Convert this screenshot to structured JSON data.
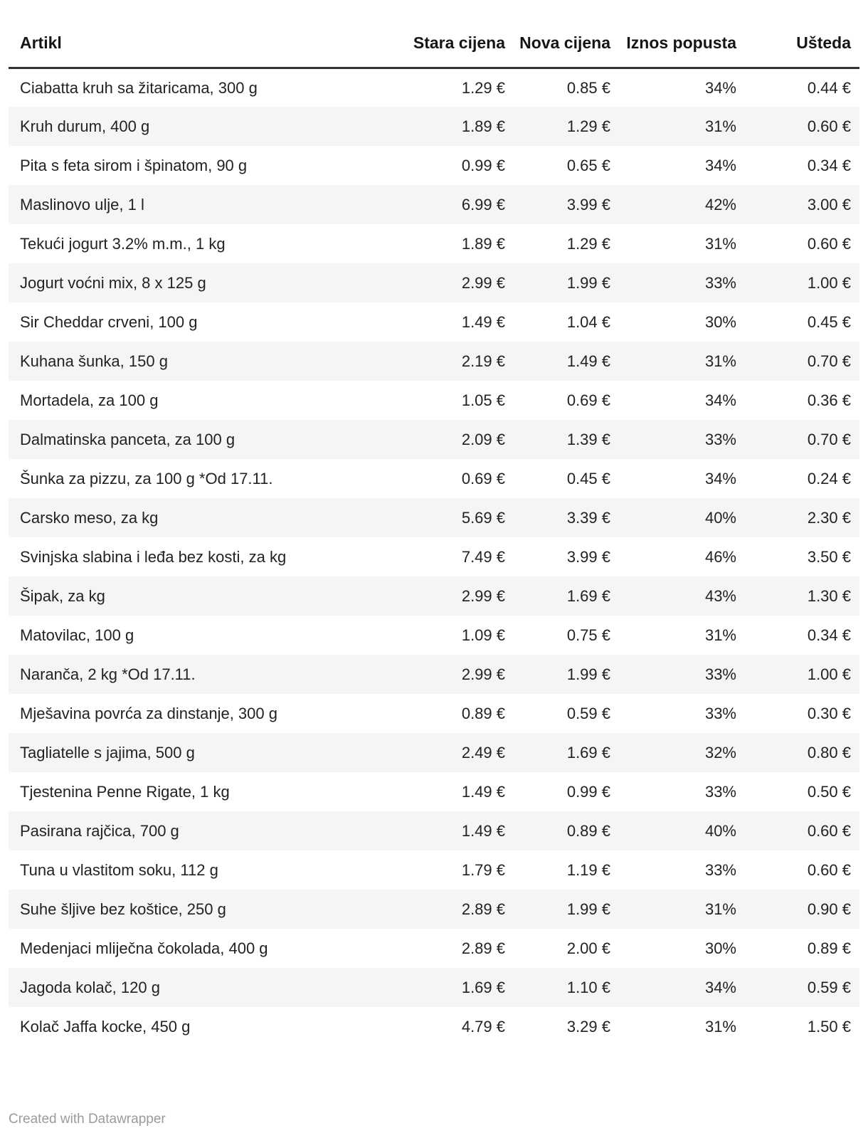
{
  "chart_data": {
    "type": "table",
    "columns": [
      "Artikl",
      "Stara cijena",
      "Nova cijena",
      "Iznos popusta",
      "Ušteda"
    ],
    "rows": [
      {
        "artikl": "Ciabatta kruh sa žitaricama, 300 g",
        "stara": "1.29 €",
        "nova": "0.85 €",
        "popust": "34%",
        "usteda": "0.44 €"
      },
      {
        "artikl": "Kruh durum, 400 g",
        "stara": "1.89 €",
        "nova": "1.29 €",
        "popust": "31%",
        "usteda": "0.60 €"
      },
      {
        "artikl": "Pita s feta sirom i špinatom, 90 g",
        "stara": "0.99 €",
        "nova": "0.65 €",
        "popust": "34%",
        "usteda": "0.34 €"
      },
      {
        "artikl": "Maslinovo ulje, 1 l",
        "stara": "6.99 €",
        "nova": "3.99 €",
        "popust": "42%",
        "usteda": "3.00 €"
      },
      {
        "artikl": "Tekući jogurt 3.2% m.m., 1 kg",
        "stara": "1.89 €",
        "nova": "1.29 €",
        "popust": "31%",
        "usteda": "0.60 €"
      },
      {
        "artikl": "Jogurt voćni mix, 8 x 125 g",
        "stara": "2.99 €",
        "nova": "1.99 €",
        "popust": "33%",
        "usteda": "1.00 €"
      },
      {
        "artikl": "Sir Cheddar crveni, 100 g",
        "stara": "1.49 €",
        "nova": "1.04 €",
        "popust": "30%",
        "usteda": "0.45 €"
      },
      {
        "artikl": "Kuhana šunka, 150 g",
        "stara": "2.19 €",
        "nova": "1.49 €",
        "popust": "31%",
        "usteda": "0.70 €"
      },
      {
        "artikl": "Mortadela, za 100 g",
        "stara": "1.05 €",
        "nova": "0.69 €",
        "popust": "34%",
        "usteda": "0.36 €"
      },
      {
        "artikl": "Dalmatinska panceta, za 100 g",
        "stara": "2.09 €",
        "nova": "1.39 €",
        "popust": "33%",
        "usteda": "0.70 €"
      },
      {
        "artikl": "Šunka za pizzu, za 100 g *Od 17.11.",
        "stara": "0.69 €",
        "nova": "0.45 €",
        "popust": "34%",
        "usteda": "0.24 €"
      },
      {
        "artikl": "Carsko meso, za kg",
        "stara": "5.69 €",
        "nova": "3.39 €",
        "popust": "40%",
        "usteda": "2.30 €"
      },
      {
        "artikl": "Svinjska slabina i leđa bez kosti, za kg",
        "stara": "7.49 €",
        "nova": "3.99 €",
        "popust": "46%",
        "usteda": "3.50 €"
      },
      {
        "artikl": "Šipak, za kg",
        "stara": "2.99 €",
        "nova": "1.69 €",
        "popust": "43%",
        "usteda": "1.30 €"
      },
      {
        "artikl": "Matovilac, 100 g",
        "stara": "1.09 €",
        "nova": "0.75 €",
        "popust": "31%",
        "usteda": "0.34 €"
      },
      {
        "artikl": "Naranča, 2 kg *Od 17.11.",
        "stara": "2.99 €",
        "nova": "1.99 €",
        "popust": "33%",
        "usteda": "1.00 €"
      },
      {
        "artikl": "Mješavina povrća za dinstanje, 300 g",
        "stara": "0.89 €",
        "nova": "0.59 €",
        "popust": "33%",
        "usteda": "0.30 €"
      },
      {
        "artikl": "Tagliatelle s jajima, 500 g",
        "stara": "2.49 €",
        "nova": "1.69 €",
        "popust": "32%",
        "usteda": "0.80 €"
      },
      {
        "artikl": "Tjestenina Penne Rigate, 1 kg",
        "stara": "1.49 €",
        "nova": "0.99 €",
        "popust": "33%",
        "usteda": "0.50 €"
      },
      {
        "artikl": "Pasirana rajčica, 700 g",
        "stara": "1.49 €",
        "nova": "0.89 €",
        "popust": "40%",
        "usteda": "0.60 €"
      },
      {
        "artikl": "Tuna u vlastitom soku, 112 g",
        "stara": "1.79 €",
        "nova": "1.19 €",
        "popust": "33%",
        "usteda": "0.60 €"
      },
      {
        "artikl": "Suhe šljive bez koštice, 250 g",
        "stara": "2.89 €",
        "nova": "1.99 €",
        "popust": "31%",
        "usteda": "0.90 €"
      },
      {
        "artikl": "Medenjaci mliječna čokolada, 400 g",
        "stara": "2.89 €",
        "nova": "2.00 €",
        "popust": "30%",
        "usteda": "0.89 €"
      },
      {
        "artikl": "Jagoda kolač, 120 g",
        "stara": "1.69 €",
        "nova": "1.10 €",
        "popust": "34%",
        "usteda": "0.59 €"
      },
      {
        "artikl": "Kolač Jaffa kocke, 450 g",
        "stara": "4.79 €",
        "nova": "3.29 €",
        "popust": "31%",
        "usteda": "1.50 €"
      }
    ],
    "layout": {
      "zebra_stripes": true,
      "stripe_color": "#f5f5f5",
      "header_rule_color": "#333333",
      "numeric_alignment": "right"
    }
  },
  "footer": {
    "credit": "Created with Datawrapper"
  },
  "colors": {
    "background": "#ffffff",
    "text": "#222222",
    "header_text": "#151515",
    "stripe": "#f5f5f5",
    "credit_text": "#9b9b9b"
  }
}
